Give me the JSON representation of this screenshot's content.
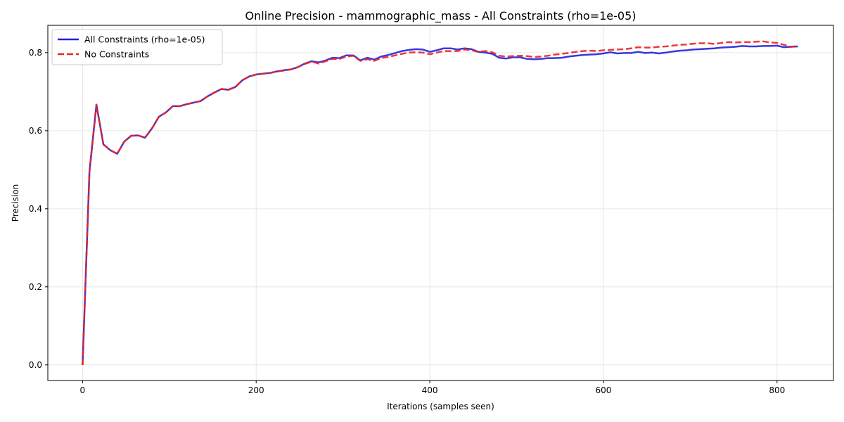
{
  "chart_data": {
    "type": "line",
    "title": "Online Precision - mammographic_mass - All Constraints (rho=1e-05)",
    "xlabel": "Iterations (samples seen)",
    "ylabel": "Precision",
    "xlim": [
      -40,
      865
    ],
    "ylim": [
      -0.04,
      0.87
    ],
    "xticks": [
      0,
      200,
      400,
      600,
      800
    ],
    "xtick_labels": [
      "0",
      "200",
      "400",
      "600",
      "800"
    ],
    "yticks": [
      0.0,
      0.2,
      0.4,
      0.6,
      0.8
    ],
    "ytick_labels": [
      "0.0",
      "0.2",
      "0.4",
      "0.6",
      "0.8"
    ],
    "grid": true,
    "legend_position": "top-left",
    "series": [
      {
        "name": "All Constraints (rho=1e-05)",
        "color": "#2222dd",
        "style": "solid",
        "x": [
          0,
          8,
          16,
          24,
          32,
          40,
          48,
          56,
          64,
          72,
          80,
          88,
          96,
          104,
          112,
          120,
          128,
          136,
          144,
          152,
          160,
          168,
          176,
          184,
          192,
          200,
          208,
          216,
          224,
          232,
          240,
          248,
          256,
          264,
          272,
          280,
          288,
          296,
          304,
          312,
          320,
          328,
          336,
          344,
          352,
          360,
          368,
          376,
          384,
          392,
          400,
          408,
          416,
          424,
          432,
          440,
          448,
          456,
          464,
          472,
          480,
          488,
          496,
          504,
          512,
          520,
          528,
          536,
          544,
          552,
          560,
          568,
          576,
          584,
          592,
          600,
          608,
          616,
          624,
          632,
          640,
          648,
          656,
          664,
          672,
          680,
          688,
          696,
          704,
          712,
          720,
          728,
          736,
          744,
          752,
          760,
          768,
          776,
          784,
          792,
          800,
          808,
          816,
          824
        ],
        "y": [
          0.0,
          0.495,
          0.667,
          0.565,
          0.55,
          0.541,
          0.572,
          0.587,
          0.588,
          0.582,
          0.606,
          0.636,
          0.647,
          0.663,
          0.663,
          0.668,
          0.672,
          0.676,
          0.688,
          0.698,
          0.707,
          0.705,
          0.712,
          0.729,
          0.739,
          0.744,
          0.746,
          0.748,
          0.752,
          0.755,
          0.757,
          0.763,
          0.772,
          0.778,
          0.775,
          0.78,
          0.787,
          0.786,
          0.793,
          0.793,
          0.78,
          0.787,
          0.782,
          0.79,
          0.794,
          0.799,
          0.804,
          0.807,
          0.809,
          0.808,
          0.802,
          0.806,
          0.811,
          0.811,
          0.808,
          0.811,
          0.809,
          0.802,
          0.8,
          0.797,
          0.787,
          0.785,
          0.788,
          0.788,
          0.784,
          0.783,
          0.784,
          0.786,
          0.786,
          0.787,
          0.79,
          0.792,
          0.794,
          0.795,
          0.796,
          0.798,
          0.801,
          0.798,
          0.799,
          0.799,
          0.802,
          0.799,
          0.8,
          0.798,
          0.8,
          0.803,
          0.805,
          0.806,
          0.808,
          0.809,
          0.81,
          0.811,
          0.813,
          0.814,
          0.815,
          0.817,
          0.816,
          0.816,
          0.817,
          0.817,
          0.818,
          0.814,
          0.815,
          0.816
        ]
      },
      {
        "name": "No Constraints",
        "color": "#ee2222",
        "style": "dashed",
        "x": [
          0,
          8,
          16,
          24,
          32,
          40,
          48,
          56,
          64,
          72,
          80,
          88,
          96,
          104,
          112,
          120,
          128,
          136,
          144,
          152,
          160,
          168,
          176,
          184,
          192,
          200,
          208,
          216,
          224,
          232,
          240,
          248,
          256,
          264,
          272,
          280,
          288,
          296,
          304,
          312,
          320,
          328,
          336,
          344,
          352,
          360,
          368,
          376,
          384,
          392,
          400,
          408,
          416,
          424,
          432,
          440,
          448,
          456,
          464,
          472,
          480,
          488,
          496,
          504,
          512,
          520,
          528,
          536,
          544,
          552,
          560,
          568,
          576,
          584,
          592,
          600,
          608,
          616,
          624,
          632,
          640,
          648,
          656,
          664,
          672,
          680,
          688,
          696,
          704,
          712,
          720,
          728,
          736,
          744,
          752,
          760,
          768,
          776,
          784,
          792,
          800,
          808,
          816,
          824
        ],
        "y": [
          0.0,
          0.495,
          0.667,
          0.565,
          0.55,
          0.541,
          0.572,
          0.587,
          0.588,
          0.582,
          0.606,
          0.636,
          0.647,
          0.663,
          0.663,
          0.668,
          0.672,
          0.676,
          0.688,
          0.698,
          0.707,
          0.705,
          0.712,
          0.729,
          0.739,
          0.744,
          0.746,
          0.748,
          0.752,
          0.754,
          0.757,
          0.763,
          0.771,
          0.777,
          0.772,
          0.778,
          0.784,
          0.784,
          0.79,
          0.792,
          0.779,
          0.783,
          0.779,
          0.786,
          0.789,
          0.793,
          0.797,
          0.8,
          0.801,
          0.8,
          0.796,
          0.8,
          0.804,
          0.804,
          0.804,
          0.808,
          0.806,
          0.802,
          0.804,
          0.801,
          0.792,
          0.79,
          0.791,
          0.792,
          0.791,
          0.789,
          0.79,
          0.792,
          0.795,
          0.797,
          0.799,
          0.802,
          0.804,
          0.805,
          0.804,
          0.806,
          0.807,
          0.808,
          0.809,
          0.811,
          0.814,
          0.813,
          0.813,
          0.815,
          0.816,
          0.818,
          0.82,
          0.821,
          0.823,
          0.824,
          0.824,
          0.822,
          0.825,
          0.827,
          0.826,
          0.827,
          0.827,
          0.828,
          0.829,
          0.826,
          0.825,
          0.82,
          0.815,
          0.817
        ]
      }
    ]
  }
}
